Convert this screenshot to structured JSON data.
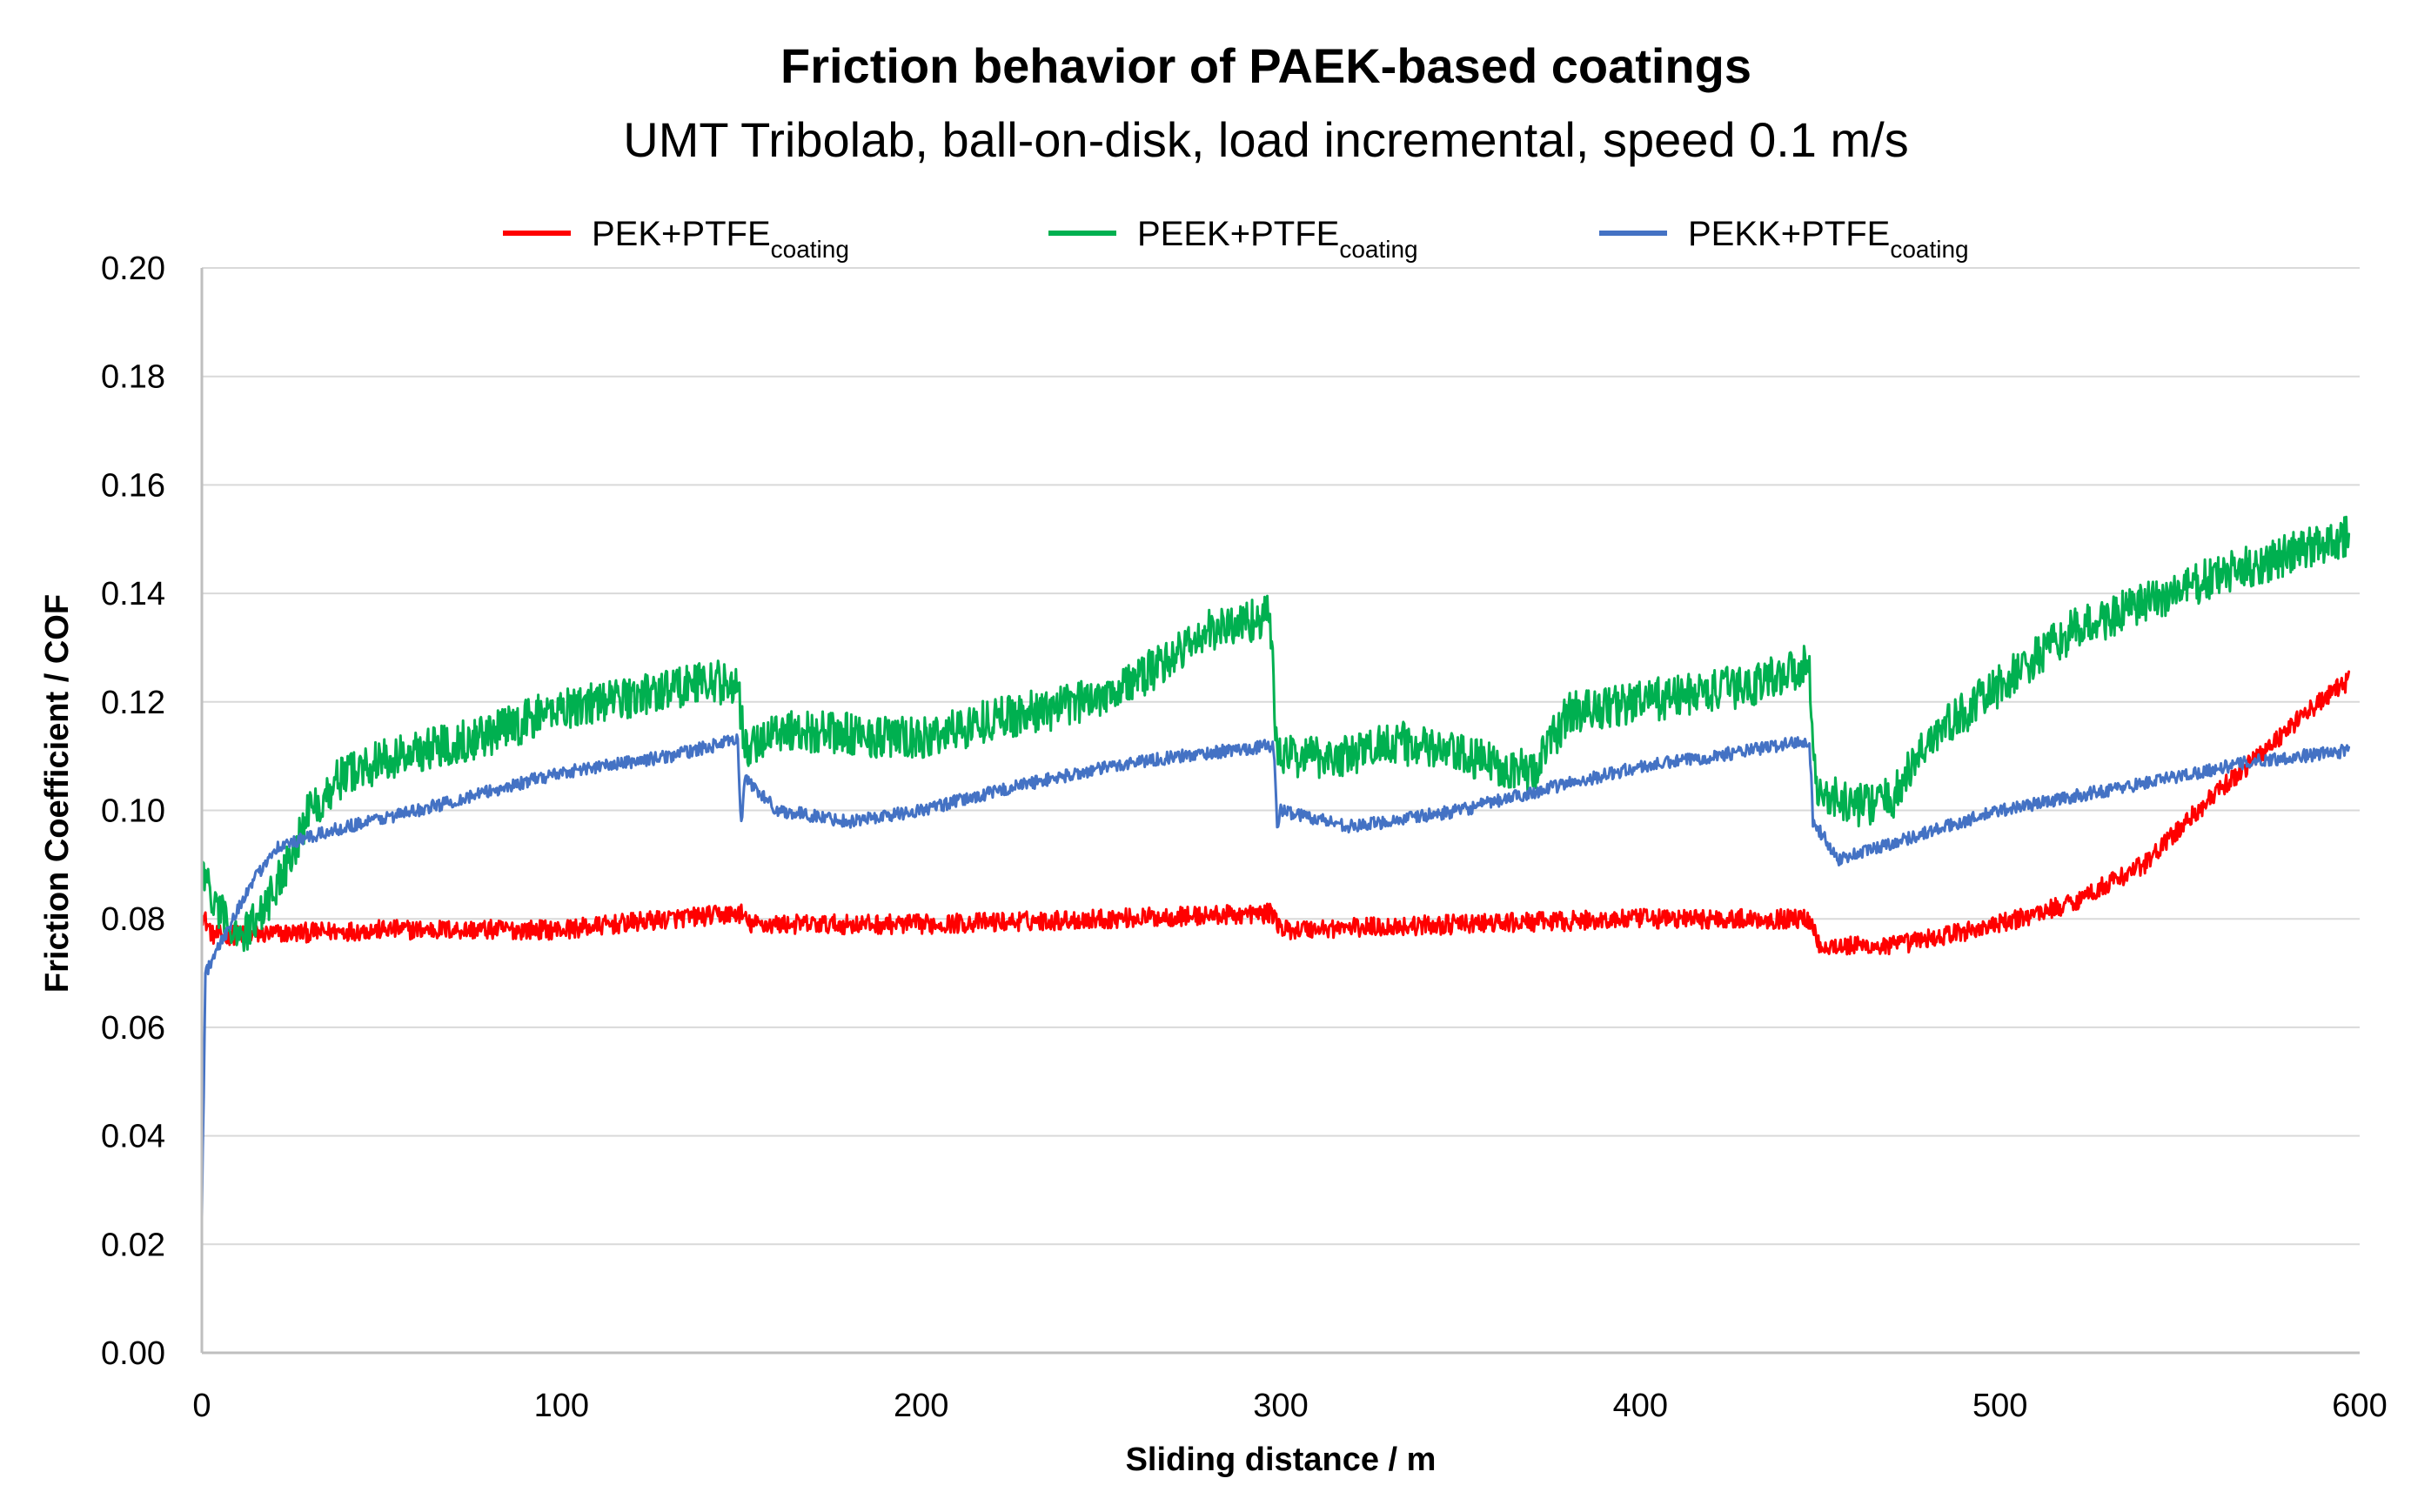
{
  "chart_data": {
    "type": "line",
    "title": "Friction behavior of PAEK-based coatings",
    "subtitle": "UMT Tribolab, ball-on-disk, load incremental, speed 0.1 m/s",
    "xlabel": "Sliding distance / m",
    "ylabel": "Friction Coefficient / COF",
    "xlim": [
      0,
      600
    ],
    "ylim": [
      0,
      0.2
    ],
    "x_ticks": [
      "0",
      "100",
      "200",
      "300",
      "400",
      "500",
      "600"
    ],
    "y_ticks": [
      "0.00",
      "0.02",
      "0.04",
      "0.06",
      "0.08",
      "0.10",
      "0.12",
      "0.14",
      "0.16",
      "0.18",
      "0.20"
    ],
    "grid": true,
    "legend_position": "top",
    "series": [
      {
        "name": "PEK+PTFE",
        "name_sub": "coating",
        "color": "#ff0000",
        "noise": 0.0018,
        "points": [
          [
            0,
            0.081
          ],
          [
            3,
            0.077
          ],
          [
            10,
            0.077
          ],
          [
            50,
            0.078
          ],
          [
            100,
            0.078
          ],
          [
            130,
            0.08
          ],
          [
            150,
            0.081
          ],
          [
            152,
            0.079
          ],
          [
            200,
            0.079
          ],
          [
            250,
            0.08
          ],
          [
            298,
            0.081
          ],
          [
            300,
            0.078
          ],
          [
            350,
            0.079
          ],
          [
            400,
            0.08
          ],
          [
            447,
            0.08
          ],
          [
            450,
            0.075
          ],
          [
            470,
            0.075
          ],
          [
            500,
            0.079
          ],
          [
            520,
            0.083
          ],
          [
            540,
            0.09
          ],
          [
            555,
            0.1
          ],
          [
            570,
            0.109
          ],
          [
            585,
            0.118
          ],
          [
            597,
            0.124
          ]
        ]
      },
      {
        "name": "PEEK+PTFE",
        "name_sub": "coating",
        "color": "#00b050",
        "noise": 0.004,
        "points": [
          [
            0,
            0.091
          ],
          [
            3,
            0.083
          ],
          [
            6,
            0.08
          ],
          [
            12,
            0.077
          ],
          [
            20,
            0.085
          ],
          [
            30,
            0.1
          ],
          [
            40,
            0.107
          ],
          [
            60,
            0.111
          ],
          [
            80,
            0.114
          ],
          [
            100,
            0.119
          ],
          [
            120,
            0.121
          ],
          [
            140,
            0.124
          ],
          [
            149,
            0.123
          ],
          [
            151,
            0.111
          ],
          [
            160,
            0.115
          ],
          [
            200,
            0.113
          ],
          [
            220,
            0.117
          ],
          [
            240,
            0.119
          ],
          [
            260,
            0.124
          ],
          [
            280,
            0.133
          ],
          [
            297,
            0.136
          ],
          [
            299,
            0.11
          ],
          [
            320,
            0.11
          ],
          [
            330,
            0.113
          ],
          [
            350,
            0.11
          ],
          [
            370,
            0.107
          ],
          [
            380,
            0.118
          ],
          [
            400,
            0.12
          ],
          [
            430,
            0.123
          ],
          [
            447,
            0.127
          ],
          [
            449,
            0.103
          ],
          [
            460,
            0.101
          ],
          [
            470,
            0.102
          ],
          [
            480,
            0.113
          ],
          [
            500,
            0.123
          ],
          [
            520,
            0.133
          ],
          [
            540,
            0.138
          ],
          [
            560,
            0.143
          ],
          [
            580,
            0.147
          ],
          [
            597,
            0.151
          ]
        ]
      },
      {
        "name": "PEKK+PTFE",
        "name_sub": "coating",
        "color": "#4472c4",
        "noise": 0.0012,
        "points": [
          [
            0,
            0.026
          ],
          [
            1,
            0.07
          ],
          [
            5,
            0.075
          ],
          [
            10,
            0.082
          ],
          [
            20,
            0.093
          ],
          [
            40,
            0.097
          ],
          [
            60,
            0.1
          ],
          [
            100,
            0.107
          ],
          [
            130,
            0.11
          ],
          [
            149,
            0.113
          ],
          [
            150,
            0.097
          ],
          [
            151,
            0.106
          ],
          [
            160,
            0.1
          ],
          [
            180,
            0.098
          ],
          [
            200,
            0.1
          ],
          [
            230,
            0.105
          ],
          [
            260,
            0.109
          ],
          [
            298,
            0.112
          ],
          [
            299,
            0.097
          ],
          [
            300,
            0.1
          ],
          [
            320,
            0.097
          ],
          [
            350,
            0.1
          ],
          [
            380,
            0.105
          ],
          [
            400,
            0.108
          ],
          [
            430,
            0.111
          ],
          [
            447,
            0.113
          ],
          [
            448,
            0.098
          ],
          [
            455,
            0.091
          ],
          [
            470,
            0.094
          ],
          [
            500,
            0.1
          ],
          [
            540,
            0.105
          ],
          [
            570,
            0.109
          ],
          [
            597,
            0.111
          ]
        ]
      }
    ]
  }
}
